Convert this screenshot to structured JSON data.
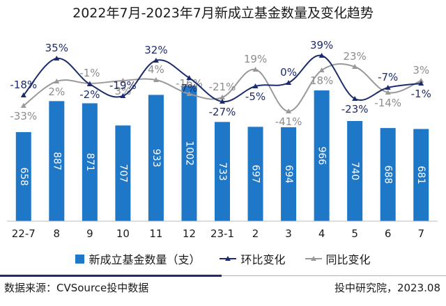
{
  "chart_data": {
    "type": "bar",
    "title": "2022年7月-2023年7月新成立基金数量及变化趋势",
    "categories": [
      "22-7",
      "8",
      "9",
      "10",
      "11",
      "12",
      "23-1",
      "2",
      "3",
      "4",
      "5",
      "6",
      "7"
    ],
    "series": [
      {
        "name": "新成立基金数量（支）",
        "type": "bar",
        "color": "#1f77c8",
        "values": [
          658,
          887,
          871,
          707,
          933,
          1002,
          733,
          697,
          694,
          966,
          740,
          688,
          681
        ]
      },
      {
        "name": "环比变化",
        "type": "line",
        "color": "#1c2b6b",
        "values": [
          -18,
          35,
          -2,
          -19,
          32,
          7,
          -27,
          -5,
          0,
          39,
          -23,
          -7,
          -1
        ],
        "labels": [
          "-18%",
          "35%",
          "-2%",
          "-19%",
          "32%",
          "7%",
          "-27%",
          "-5%",
          "0%",
          "39%",
          "-23%",
          "-7%",
          "-1%"
        ]
      },
      {
        "name": "同比变化",
        "type": "line",
        "color": "#999999",
        "values": [
          -33,
          2,
          -1,
          3,
          4,
          -16,
          -21,
          19,
          -41,
          18,
          23,
          -14,
          3
        ],
        "labels": [
          "-33%",
          "2%",
          "-1%",
          "3%",
          "4%",
          "-16%",
          "-21%",
          "19%",
          "-41%",
          "18%",
          "23%",
          "-14%",
          "3%"
        ]
      }
    ],
    "legend": "bottom",
    "grid": false
  },
  "footer": {
    "source": "数据来源：CVSource投中数据",
    "credit": "投中研究院，2023.08"
  }
}
